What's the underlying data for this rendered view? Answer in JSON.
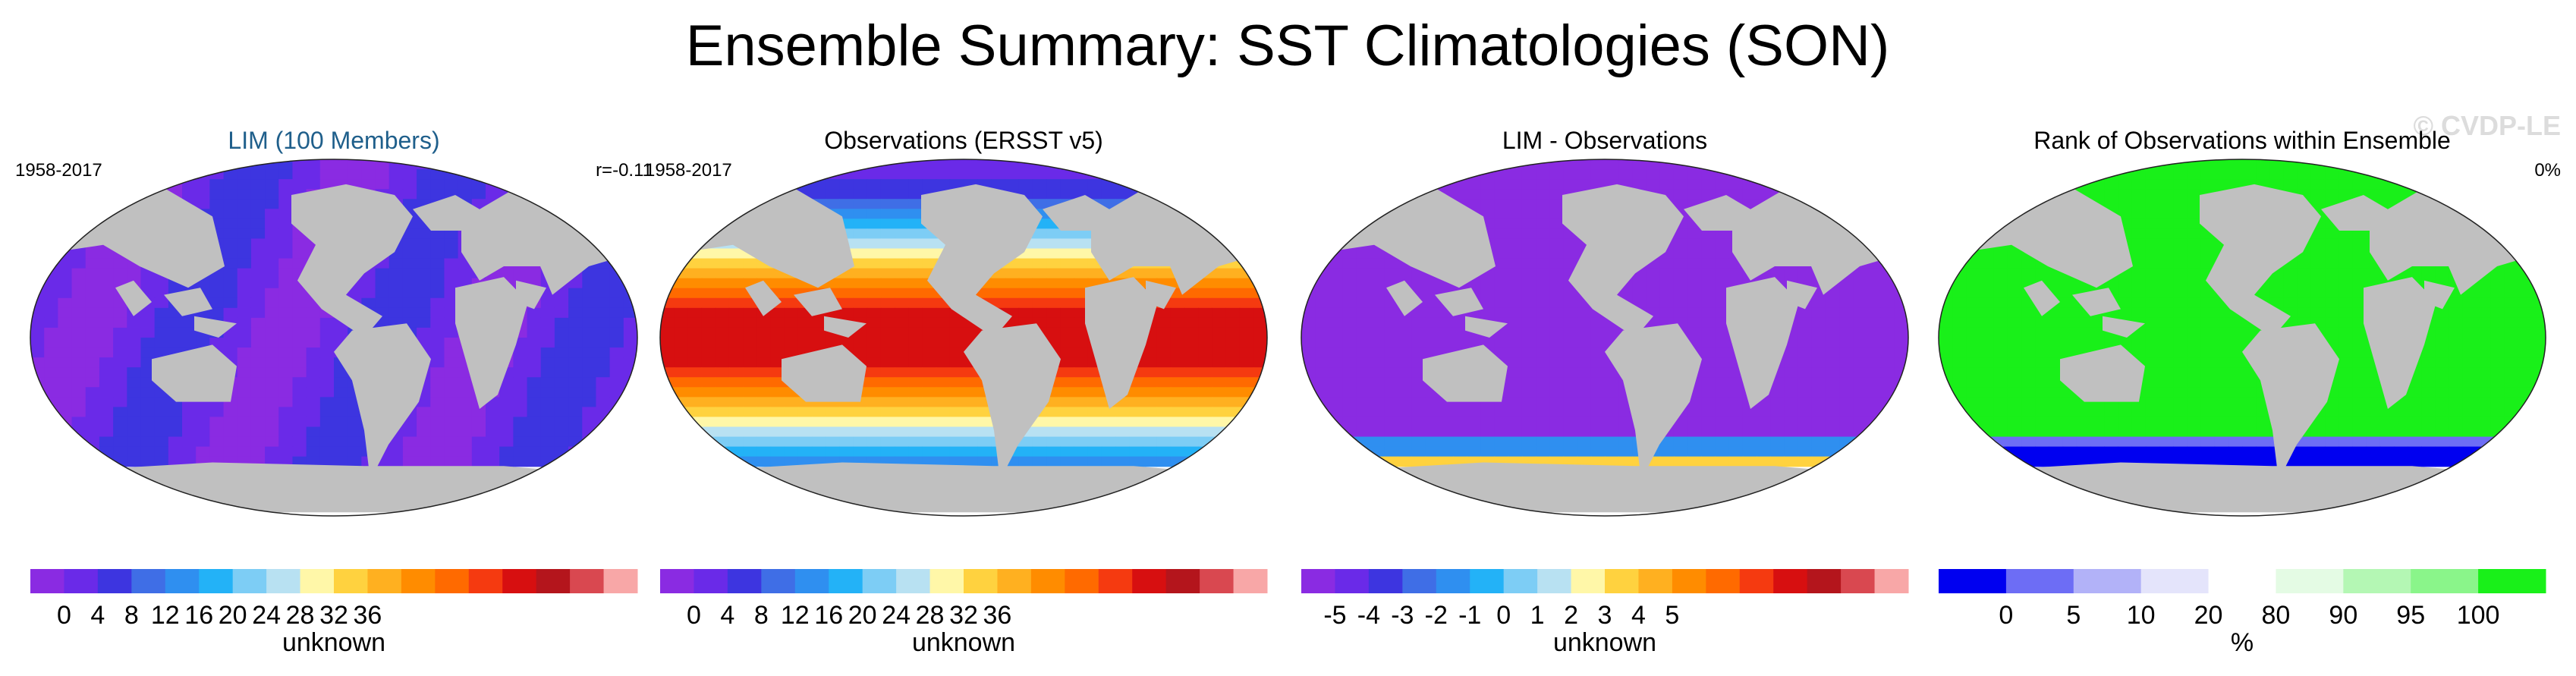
{
  "title": "Ensemble Summary: SST Climatologies (SON)",
  "watermark": "© CVDP-LE",
  "colors": {
    "title_blue": "#1f5f8b",
    "land": "#c0c0c0",
    "missing": "#ffffff",
    "ocean_edge": "#222222"
  },
  "chart_data": [
    {
      "type": "heatmap",
      "title": "LIM (100 Members)",
      "title_color": "#1f5f8b",
      "left_label": "1958-2017",
      "right_label": "r=-0.11",
      "colorbar": {
        "ticks": [
          "0",
          "4",
          "8",
          "12",
          "16",
          "20",
          "24",
          "28",
          "32",
          "36"
        ],
        "colors": [
          "#8a2be2",
          "#6a2ae8",
          "#3d35e0",
          "#3f6ee6",
          "#2f8ff0",
          "#23b2f7",
          "#7dcdf5",
          "#b8e1f2",
          "#fff7a8",
          "#ffd23f",
          "#ffb020",
          "#ff8c00",
          "#ff6a00",
          "#f53a10",
          "#d70f10",
          "#b4151c",
          "#d94850",
          "#f8a7a7"
        ],
        "label": "unknown"
      },
      "field": "lim"
    },
    {
      "type": "heatmap",
      "title": "Observations (ERSST v5)",
      "title_color": "#000000",
      "left_label": "1958-2017",
      "right_label": "",
      "colorbar": {
        "ticks": [
          "0",
          "4",
          "8",
          "12",
          "16",
          "20",
          "24",
          "28",
          "32",
          "36"
        ],
        "colors": [
          "#8a2be2",
          "#6a2ae8",
          "#3d35e0",
          "#3f6ee6",
          "#2f8ff0",
          "#23b2f7",
          "#7dcdf5",
          "#b8e1f2",
          "#fff7a8",
          "#ffd23f",
          "#ffb020",
          "#ff8c00",
          "#ff6a00",
          "#f53a10",
          "#d70f10",
          "#b4151c",
          "#d94850",
          "#f8a7a7"
        ],
        "label": "unknown"
      },
      "field": "obs"
    },
    {
      "type": "heatmap",
      "title": "LIM - Observations",
      "title_color": "#000000",
      "left_label": "",
      "right_label": "",
      "colorbar": {
        "ticks": [
          "-5",
          "-4",
          "-3",
          "-2",
          "-1",
          "0",
          "1",
          "2",
          "3",
          "4",
          "5"
        ],
        "colors": [
          "#8a2be2",
          "#6a2ae8",
          "#3d35e0",
          "#3f6ee6",
          "#2f8ff0",
          "#23b2f7",
          "#7dcdf5",
          "#b8e1f2",
          "#fff7a8",
          "#ffd23f",
          "#ffb020",
          "#ff8c00",
          "#ff6a00",
          "#f53a10",
          "#d70f10",
          "#b4151c",
          "#d94850",
          "#f8a7a7"
        ],
        "label": "unknown"
      },
      "field": "diff"
    },
    {
      "type": "heatmap",
      "title": "Rank of Observations within Ensemble",
      "title_color": "#000000",
      "left_label": "",
      "right_label": "0%",
      "colorbar": {
        "ticks": [
          "0",
          "5",
          "10",
          "20",
          "80",
          "90",
          "95",
          "100"
        ],
        "colors": [
          "#0000f0",
          "#6d6df5",
          "#b2b2f8",
          "#e4e4fb",
          "#ffffff",
          "#e4fbe4",
          "#b4f7b4",
          "#8af58a",
          "#19f019"
        ],
        "label": "%"
      },
      "field": "rank"
    }
  ]
}
